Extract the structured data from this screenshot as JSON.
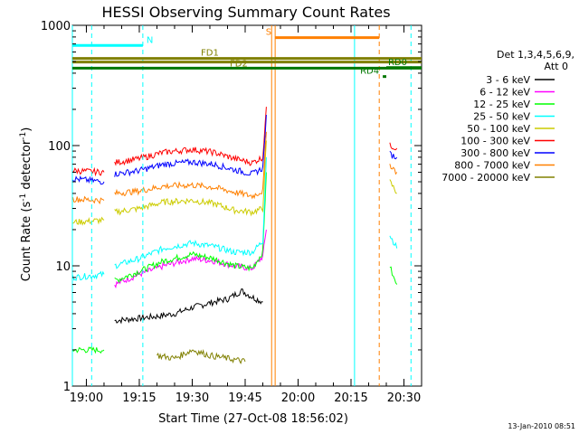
{
  "chart_data": {
    "type": "line",
    "title": "HESSI Observing Summary Count Rates",
    "xlabel": "Start Time (27-Oct-08 18:56:02)",
    "ylabel": "Count Rate (s⁻¹ detector⁻¹)",
    "ylabel_base": "Count Rate (s",
    "ylabel_mid": " detector",
    "ylabel_end": ")",
    "ylabel_sup": "-1",
    "y_scale": "log",
    "ylim": [
      1,
      1000
    ],
    "xlim": [
      "18:56:02",
      "20:35:00"
    ],
    "x_ticks": [
      "19:00",
      "19:15",
      "19:30",
      "19:45",
      "20:00",
      "20:15",
      "20:30"
    ],
    "y_ticks": [
      "1",
      "10",
      "100",
      "1000"
    ],
    "footer": "13-Jan-2010 08:51",
    "legend": {
      "header_line1": "Det 1,3,4,5,6,9,",
      "header_line2": "Att 0",
      "placement": "right",
      "entries": [
        {
          "label": "3 - 6 keV",
          "color": "#000000"
        },
        {
          "label": "6 - 12 keV",
          "color": "#ff00ff"
        },
        {
          "label": "12 - 25 keV",
          "color": "#00ff00"
        },
        {
          "label": "25 - 50 keV",
          "color": "#00ffff"
        },
        {
          "label": "50 - 100 keV",
          "color": "#cccc00"
        },
        {
          "label": "100 - 300 keV",
          "color": "#ff0000"
        },
        {
          "label": "300 - 800 keV",
          "color": "#0000ff"
        },
        {
          "label": "800 - 7000 keV",
          "color": "#ff8000"
        },
        {
          "label": "7000 - 20000 keV",
          "color": "#808000"
        }
      ]
    },
    "series": [
      {
        "name": "3 - 6 keV",
        "color": "#000000",
        "segments": [
          [
            [
              "19:08:00",
              3.5
            ],
            [
              "19:20:00",
              3.8
            ],
            [
              "19:25:00",
              4.0
            ],
            [
              "19:30:00",
              4.5
            ],
            [
              "19:36:00",
              5.0
            ],
            [
              "19:40:00",
              5.3
            ],
            [
              "19:44:00",
              6.2
            ],
            [
              "19:47:00",
              5.5
            ],
            [
              "19:50:00",
              5.0
            ]
          ]
        ]
      },
      {
        "name": "6 - 12 keV",
        "color": "#ff00ff",
        "segments": [
          [
            [
              "19:08:00",
              7.0
            ],
            [
              "19:15:00",
              8.5
            ],
            [
              "19:22:00",
              10.0
            ],
            [
              "19:30:00",
              11.5
            ],
            [
              "19:36:00",
              11.0
            ],
            [
              "19:42:00",
              10.0
            ],
            [
              "19:47:00",
              9.5
            ],
            [
              "19:50:00",
              12.0
            ],
            [
              "19:51:00",
              20.0
            ]
          ]
        ]
      },
      {
        "name": "12 - 25 keV",
        "color": "#00ff00",
        "segments": [
          [
            [
              "18:56:10",
              2.0
            ],
            [
              "19:05:00",
              2.0
            ]
          ],
          [
            [
              "19:08:00",
              7.5
            ],
            [
              "19:15:00",
              9.0
            ],
            [
              "19:22:00",
              11.0
            ],
            [
              "19:30:00",
              12.5
            ],
            [
              "19:36:00",
              11.5
            ],
            [
              "19:42:00",
              10.0
            ],
            [
              "19:47:00",
              9.5
            ],
            [
              "19:50:00",
              13.0
            ],
            [
              "19:51:00",
              60.0
            ]
          ],
          [
            [
              "20:26:00",
              10.0
            ],
            [
              "20:27:00",
              8.0
            ],
            [
              "20:28:00",
              7.0
            ]
          ]
        ]
      },
      {
        "name": "25 - 50 keV",
        "color": "#00ffff",
        "segments": [
          [
            [
              "18:56:10",
              8.0
            ],
            [
              "19:05:00",
              8.5
            ]
          ],
          [
            [
              "19:08:00",
              10.0
            ],
            [
              "19:15:00",
              11.5
            ],
            [
              "19:22:00",
              14.0
            ],
            [
              "19:30:00",
              15.5
            ],
            [
              "19:36:00",
              14.5
            ],
            [
              "19:42:00",
              13.0
            ],
            [
              "19:47:00",
              13.0
            ],
            [
              "19:50:00",
              16.0
            ],
            [
              "19:51:00",
              80.0
            ]
          ],
          [
            [
              "20:26:00",
              18.0
            ],
            [
              "20:27:00",
              16.0
            ],
            [
              "20:28:00",
              14.0
            ]
          ]
        ]
      },
      {
        "name": "50 - 100 keV",
        "color": "#cccc00",
        "segments": [
          [
            [
              "18:56:10",
              23.0
            ],
            [
              "19:05:00",
              24.0
            ]
          ],
          [
            [
              "19:08:00",
              28.0
            ],
            [
              "19:15:00",
              30.0
            ],
            [
              "19:22:00",
              34.0
            ],
            [
              "19:30:00",
              35.0
            ],
            [
              "19:36:00",
              33.0
            ],
            [
              "19:42:00",
              29.0
            ],
            [
              "19:47:00",
              28.0
            ],
            [
              "19:50:00",
              30.0
            ],
            [
              "19:51:00",
              110.0
            ]
          ],
          [
            [
              "20:26:00",
              50.0
            ],
            [
              "20:27:00",
              45.0
            ],
            [
              "20:28:00",
              40.0
            ]
          ]
        ]
      },
      {
        "name": "100 - 300 keV",
        "color": "#ff0000",
        "segments": [
          [
            [
              "18:56:10",
              62.0
            ],
            [
              "19:05:00",
              60.0
            ]
          ],
          [
            [
              "19:08:00",
              72.0
            ],
            [
              "19:15:00",
              78.0
            ],
            [
              "19:22:00",
              88.0
            ],
            [
              "19:30:00",
              93.0
            ],
            [
              "19:36:00",
              88.0
            ],
            [
              "19:42:00",
              78.0
            ],
            [
              "19:47:00",
              72.0
            ],
            [
              "19:50:00",
              80.0
            ],
            [
              "19:51:00",
              210.0
            ]
          ],
          [
            [
              "20:26:00",
              100.0
            ],
            [
              "20:27:00",
              98.0
            ],
            [
              "20:28:00",
              95.0
            ]
          ]
        ]
      },
      {
        "name": "300 - 800 keV",
        "color": "#0000ff",
        "segments": [
          [
            [
              "18:56:10",
              53.0
            ],
            [
              "19:05:00",
              50.0
            ]
          ],
          [
            [
              "19:08:00",
              58.0
            ],
            [
              "19:15:00",
              62.0
            ],
            [
              "19:22:00",
              70.0
            ],
            [
              "19:30:00",
              73.0
            ],
            [
              "19:36:00",
              70.0
            ],
            [
              "19:42:00",
              63.0
            ],
            [
              "19:47:00",
              58.0
            ],
            [
              "19:50:00",
              65.0
            ],
            [
              "19:51:00",
              180.0
            ]
          ],
          [
            [
              "20:26:00",
              85.0
            ],
            [
              "20:27:00",
              82.0
            ],
            [
              "20:28:00",
              80.0
            ]
          ]
        ]
      },
      {
        "name": "800 - 7000 keV",
        "color": "#ff8000",
        "segments": [
          [
            [
              "18:56:10",
              36.0
            ],
            [
              "19:05:00",
              35.0
            ]
          ],
          [
            [
              "19:08:00",
              40.0
            ],
            [
              "19:15:00",
              42.0
            ],
            [
              "19:22:00",
              46.0
            ],
            [
              "19:30:00",
              47.0
            ],
            [
              "19:36:00",
              45.0
            ],
            [
              "19:42:00",
              41.0
            ],
            [
              "19:47:00",
              38.0
            ],
            [
              "19:50:00",
              42.0
            ],
            [
              "19:51:00",
              130.0
            ]
          ],
          [
            [
              "20:26:00",
              70.0
            ],
            [
              "20:27:00",
              65.0
            ],
            [
              "20:28:00",
              60.0
            ]
          ]
        ]
      },
      {
        "name": "7000 - 20000 keV",
        "color": "#808000",
        "segments": [
          [
            [
              "19:20:00",
              1.8
            ],
            [
              "19:25:00",
              1.7
            ],
            [
              "19:30:00",
              2.0
            ],
            [
              "19:35:00",
              1.8
            ],
            [
              "19:40:00",
              1.7
            ],
            [
              "19:45:00",
              1.6
            ]
          ]
        ]
      }
    ],
    "bars": [
      {
        "label": "N",
        "color": "#00ffff",
        "start": "18:56:02",
        "end": "19:16:00",
        "level": 680,
        "label_at": "start_after_end"
      },
      {
        "label": "FD1",
        "color": "#808000",
        "start": "18:56:02",
        "end": "20:35:00",
        "level": 530,
        "label_at": "mid"
      },
      {
        "label": "FD2",
        "color": "#808000",
        "start": "18:56:02",
        "end": "20:35:00",
        "level": 495,
        "label_at": "mid"
      },
      {
        "label": "",
        "color": "#007700",
        "start": "18:56:02",
        "end": "20:35:00",
        "level": 440,
        "label_at": "none"
      },
      {
        "label": "S",
        "color": "#ff8000",
        "start": "19:53:30",
        "end": "20:23:00",
        "level": 790,
        "label_at": "before"
      },
      {
        "label": "RD4",
        "color": "#007700",
        "start": "20:24:00",
        "end": "20:25:00",
        "level": 375,
        "label_at": "before"
      },
      {
        "label": "RD0",
        "color": "#007700",
        "start": "20:25:00",
        "end": "20:35:00",
        "level": 445,
        "label_at": "end"
      }
    ],
    "vlines": [
      {
        "time": "18:56:02",
        "color": "#00ffff",
        "style": "solid"
      },
      {
        "time": "19:01:30",
        "color": "#00ffff",
        "style": "dashed"
      },
      {
        "time": "19:16:00",
        "color": "#00ffff",
        "style": "dashed"
      },
      {
        "time": "19:52:30",
        "color": "#ff8000",
        "style": "solid"
      },
      {
        "time": "19:53:30",
        "color": "#ff8000",
        "style": "solid"
      },
      {
        "time": "20:16:00",
        "color": "#00ffff",
        "style": "solid"
      },
      {
        "time": "20:23:00",
        "color": "#ff8000",
        "style": "dashed"
      },
      {
        "time": "20:32:00",
        "color": "#00ffff",
        "style": "dashed"
      }
    ]
  }
}
